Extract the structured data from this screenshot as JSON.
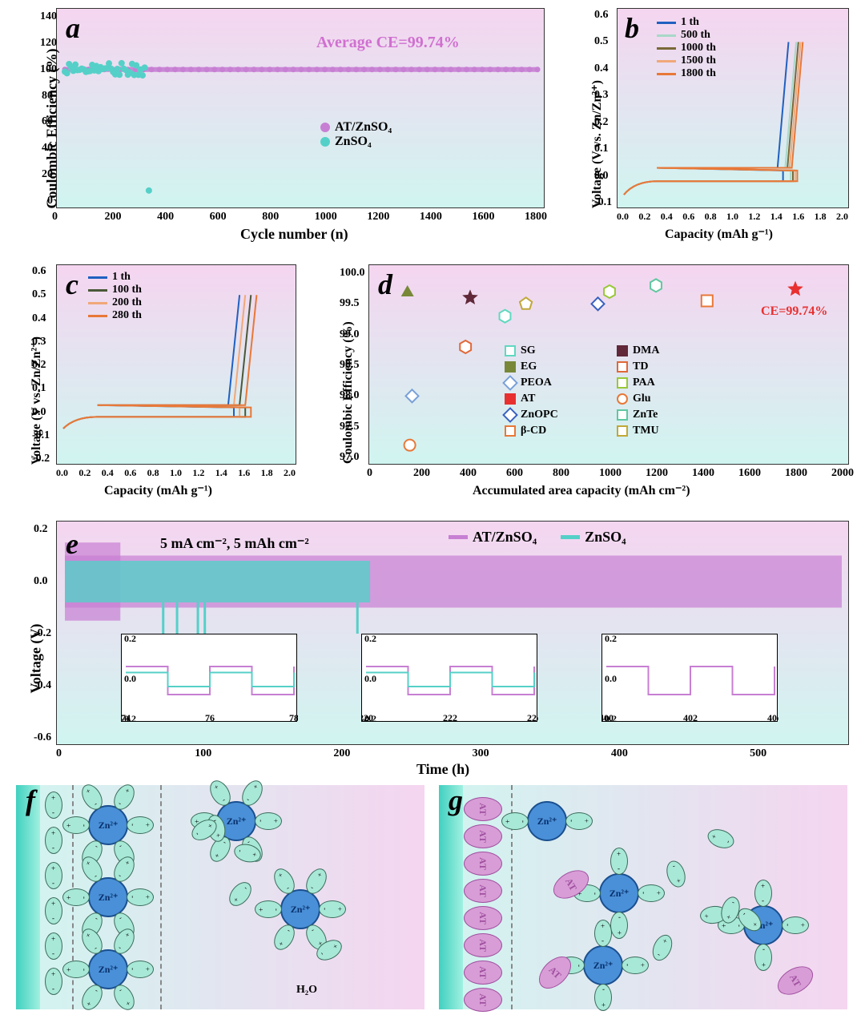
{
  "colors": {
    "bg_top": "#f5d5f0",
    "bg_bot": "#d0f5f0",
    "at_znso4": "#c77fd3",
    "znso4": "#55d0c8",
    "line1": "#2060c0",
    "line500": "#a8d8c8",
    "line1000": "#7a6838",
    "line1500": "#f0a878",
    "line1800": "#e87838",
    "zn_ion": "#4a90d8",
    "zn_ion_border": "#1a4f8f",
    "water": "#a8e8d6",
    "at": "#d89dd6",
    "at_border": "#a050a0",
    "ce_text": "#d070d0",
    "red_star": "#e83030"
  },
  "panel_a": {
    "letter": "a",
    "title_text": "Average CE=99.74%",
    "ylabel": "Coulombic Efficiency (%)",
    "xlabel": "Cycle number (n)",
    "ylim": [
      0,
      140
    ],
    "ytick_step": 20,
    "xlim": [
      0,
      1800
    ],
    "xtick_step": 200,
    "legend": [
      {
        "label": "AT/ZnSO₄",
        "color": "#c77fd3",
        "marker": "circle"
      },
      {
        "label": "ZnSO₄",
        "color": "#55d0c8",
        "marker": "circle"
      }
    ],
    "series": {
      "at": {
        "y_const": 100,
        "x_range": [
          0,
          1800
        ]
      },
      "zn": {
        "noise_y": [
          95,
          105
        ],
        "x_range": [
          0,
          310
        ],
        "drop_x": 320,
        "drop_y": 8
      }
    }
  },
  "panel_b": {
    "letter": "b",
    "ylabel": "Voltage (V vs. Zn/Zn²⁺)",
    "xlabel": "Capacity (mAh g⁻¹)",
    "ylim": [
      -0.1,
      0.6
    ],
    "yticks": [
      -0.1,
      0.0,
      0.1,
      0.2,
      0.3,
      0.4,
      0.5,
      0.6
    ],
    "xlim": [
      0.0,
      2.0
    ],
    "xtick_step": 0.2,
    "legend": [
      {
        "label": "1 th",
        "color": "#2060c0"
      },
      {
        "label": "500 th",
        "color": "#a8d8c8"
      },
      {
        "label": "1000 th",
        "color": "#7a6838"
      },
      {
        "label": "1500 th",
        "color": "#f0a878"
      },
      {
        "label": "1800 th",
        "color": "#e87838"
      }
    ]
  },
  "panel_c": {
    "letter": "c",
    "ylabel": "Voltage (V vs. Zn/Zn²⁺)",
    "xlabel": "Capacity (mAh g⁻¹)",
    "ylim": [
      -0.2,
      0.6
    ],
    "yticks": [
      -0.2,
      -0.1,
      0.0,
      0.1,
      0.2,
      0.3,
      0.4,
      0.5,
      0.6
    ],
    "xlim": [
      0.0,
      2.0
    ],
    "xtick_step": 0.2,
    "legend": [
      {
        "label": "1 th",
        "color": "#2060c0"
      },
      {
        "label": "100 th",
        "color": "#4a5838"
      },
      {
        "label": "200 th",
        "color": "#f0a878"
      },
      {
        "label": "280 th",
        "color": "#e87838"
      }
    ]
  },
  "panel_d": {
    "letter": "d",
    "ylabel": "Coulombic Efficiency (%)",
    "xlabel": "Accumulated area capacity (mAh cm⁻²)",
    "ylim": [
      97.0,
      100.0
    ],
    "ytick_step": 0.5,
    "xlim": [
      0,
      2000
    ],
    "xtick_step": 200,
    "annotation": "CE=99.74%",
    "legend": [
      {
        "label": "SG",
        "color": "#60d8c0",
        "shape": "hex"
      },
      {
        "label": "DMA",
        "color": "#602838",
        "shape": "star"
      },
      {
        "label": "EG",
        "color": "#788838",
        "shape": "triangle"
      },
      {
        "label": "TD",
        "color": "#e06838",
        "shape": "hex"
      },
      {
        "label": "PEOA",
        "color": "#78a0d8",
        "shape": "diamond"
      },
      {
        "label": "PAA",
        "color": "#98c838",
        "shape": "hex"
      },
      {
        "label": "AT",
        "color": "#e83030",
        "shape": "star"
      },
      {
        "label": "Glu",
        "color": "#e87838",
        "shape": "circle"
      },
      {
        "label": "ZnOPC",
        "color": "#3860c0",
        "shape": "diamond"
      },
      {
        "label": "ZnTe",
        "color": "#60c8a0",
        "shape": "hex"
      },
      {
        "label": "β-CD",
        "color": "#e87838",
        "shape": "square"
      },
      {
        "label": "TMU",
        "color": "#c0a838",
        "shape": "pentagon"
      }
    ],
    "points": [
      {
        "x": 140,
        "y": 97.2,
        "idx": 7
      },
      {
        "x": 150,
        "y": 98.0,
        "idx": 4
      },
      {
        "x": 130,
        "y": 99.7,
        "idx": 2
      },
      {
        "x": 380,
        "y": 98.8,
        "idx": 3
      },
      {
        "x": 400,
        "y": 99.6,
        "idx": 1
      },
      {
        "x": 550,
        "y": 99.3,
        "idx": 0
      },
      {
        "x": 640,
        "y": 99.5,
        "idx": 11
      },
      {
        "x": 950,
        "y": 99.5,
        "idx": 8
      },
      {
        "x": 1000,
        "y": 99.7,
        "idx": 5
      },
      {
        "x": 1200,
        "y": 99.8,
        "idx": 9
      },
      {
        "x": 1420,
        "y": 99.55,
        "idx": 10
      },
      {
        "x": 1800,
        "y": 99.74,
        "idx": 6
      }
    ]
  },
  "panel_e": {
    "letter": "e",
    "ylabel": "Voltage (V)",
    "xlabel": "Time (h)",
    "condition": "5 mA cm⁻², 5 mAh cm⁻²",
    "ylim": [
      -0.6,
      0.2
    ],
    "ytick_step": 0.2,
    "xlim": [
      0,
      560
    ],
    "xtick_step": 100,
    "xticks": [
      0,
      100,
      200,
      300,
      400,
      500
    ],
    "legend": [
      {
        "label": "AT/ZnSO₄",
        "color": "#c77fd3"
      },
      {
        "label": "ZnSO₄",
        "color": "#55d0c8"
      }
    ],
    "insets": [
      {
        "xlim": [
          74,
          78
        ],
        "ylim": [
          -0.2,
          0.2
        ]
      },
      {
        "xlim": [
          220,
          224
        ],
        "ylim": [
          -0.2,
          0.2
        ]
      },
      {
        "xlim": [
          400,
          404
        ],
        "ylim": [
          -0.2,
          0.2
        ]
      }
    ]
  },
  "panel_f": {
    "letter": "f",
    "label_h2o": "H₂O"
  },
  "panel_g": {
    "letter": "g",
    "label_at": "AT"
  }
}
